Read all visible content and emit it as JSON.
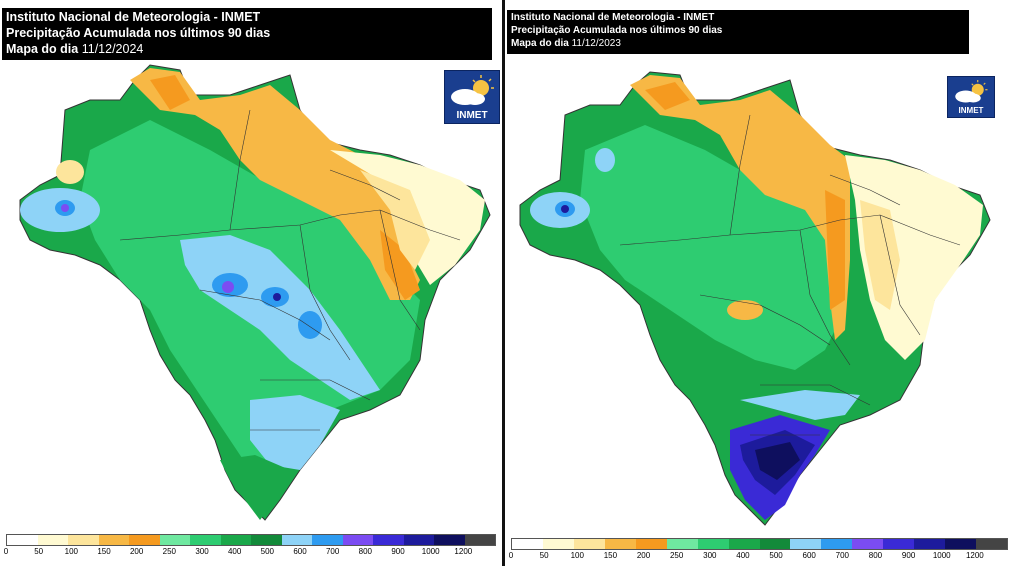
{
  "panels": [
    {
      "header": {
        "line1": "Instituto Nacional de Meteorologia - INMET",
        "line2": "Precipitação Acumulada nos últimos 90 dias",
        "line3_label": "Mapa do dia",
        "line3_date": "11/12/2024"
      },
      "logo_text": "INMET"
    },
    {
      "header": {
        "line1": "Instituto Nacional de Meteorologia - INMET",
        "line2": "Precipitação Acumulada nos últimos 90 dias",
        "line3_label": "Mapa do dia",
        "line3_date": "11/12/2023"
      },
      "logo_text": "INMET"
    }
  ],
  "legend": {
    "ticks": [
      "0",
      "50",
      "100",
      "150",
      "200",
      "250",
      "300",
      "400",
      "500",
      "600",
      "700",
      "800",
      "900",
      "1000",
      "1200"
    ],
    "colors": [
      "#ffffff",
      "#fffad2",
      "#fde59c",
      "#f7b845",
      "#f59a1f",
      "#6fe8a0",
      "#2ecc71",
      "#1aa84a",
      "#138a3a",
      "#8ed3f7",
      "#2e9bf0",
      "#7b4cf2",
      "#3a2ad6",
      "#1d1b9c",
      "#0e0f5e",
      "#444444"
    ]
  },
  "map_colors": {
    "dry": "#fffad2",
    "light": "#fde59c",
    "orange": "#f7b845",
    "deep_orange": "#f59a1f",
    "light_green": "#6fe8a0",
    "green": "#2ecc71",
    "dark_green": "#1aa84a",
    "darkest_green": "#138a3a",
    "light_blue": "#8ed3f7",
    "blue": "#2e9bf0",
    "purple": "#7b4cf2",
    "indigo": "#3a2ad6",
    "navy": "#1d1b9c"
  }
}
